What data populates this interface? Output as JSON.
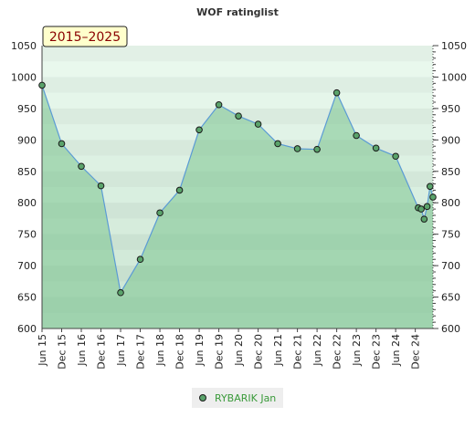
{
  "chart_data": {
    "type": "area",
    "title": "WOF ratinglist",
    "badge": "2015–2025",
    "ylim": [
      600,
      1050
    ],
    "y_ticks": [
      600,
      650,
      700,
      750,
      800,
      850,
      900,
      950,
      1000,
      1050
    ],
    "categories": [
      "Jun 15",
      "Dec 15",
      "Jun 16",
      "Dec 16",
      "Jun 17",
      "Dec 17",
      "Jun 18",
      "Dec 18",
      "Jun 19",
      "Dec 19",
      "Jun 20",
      "Dec 20",
      "Jun 21",
      "Dec 21",
      "Jun 22",
      "Dec 22",
      "Jun 23",
      "Dec 23",
      "Jun 24",
      "Dec 24"
    ],
    "series": [
      {
        "name": "RYBARIK Jan",
        "color": "#5b9bd5",
        "fill": "#7cc48f",
        "points": [
          {
            "x": 0,
            "y": 987
          },
          {
            "x": 1,
            "y": 894
          },
          {
            "x": 2,
            "y": 858
          },
          {
            "x": 3,
            "y": 827
          },
          {
            "x": 4,
            "y": 657
          },
          {
            "x": 5,
            "y": 710
          },
          {
            "x": 6,
            "y": 784
          },
          {
            "x": 7,
            "y": 820
          },
          {
            "x": 8,
            "y": 916
          },
          {
            "x": 9,
            "y": 956
          },
          {
            "x": 10,
            "y": 938
          },
          {
            "x": 11,
            "y": 925
          },
          {
            "x": 12,
            "y": 894
          },
          {
            "x": 13,
            "y": 886
          },
          {
            "x": 14,
            "y": 885
          },
          {
            "x": 15,
            "y": 975
          },
          {
            "x": 16,
            "y": 907
          },
          {
            "x": 17,
            "y": 887
          },
          {
            "x": 18,
            "y": 874
          },
          {
            "x": 19.15,
            "y": 792
          },
          {
            "x": 19.3,
            "y": 790
          },
          {
            "x": 19.45,
            "y": 774
          },
          {
            "x": 19.6,
            "y": 794
          },
          {
            "x": 19.75,
            "y": 826
          },
          {
            "x": 19.9,
            "y": 809
          }
        ]
      }
    ],
    "grid": true,
    "legend": "bottom-center"
  }
}
